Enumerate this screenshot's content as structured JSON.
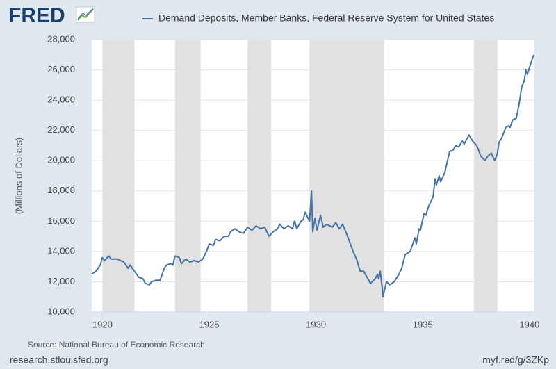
{
  "chart_data": {
    "type": "line",
    "logo": "FRED",
    "y_label": "(Millions of Dollars)",
    "source": "Source: National Bureau of Economic Research",
    "footer_left": "research.stlouisfed.org",
    "footer_right": "myf.red/g/3ZKp",
    "xlim": [
      1919.5,
      1940.2
    ],
    "xticks": [
      1920,
      1925,
      1930,
      1935,
      1940
    ],
    "ylim": [
      10000,
      28000
    ],
    "yticks": [
      {
        "value": 10000,
        "label": "10,000"
      },
      {
        "value": 12000,
        "label": "12,000"
      },
      {
        "value": 14000,
        "label": "14,000"
      },
      {
        "value": 16000,
        "label": "16,000"
      },
      {
        "value": 18000,
        "label": "18,000"
      },
      {
        "value": 20000,
        "label": "20,000"
      },
      {
        "value": 22000,
        "label": "22,000"
      },
      {
        "value": 24000,
        "label": "24,000"
      },
      {
        "value": 26000,
        "label": "26,000"
      },
      {
        "value": 28000,
        "label": "28,000"
      }
    ],
    "grid": true,
    "recessions": [
      [
        1920.0,
        1921.5
      ],
      [
        1923.4,
        1924.6
      ],
      [
        1926.8,
        1927.9
      ],
      [
        1929.7,
        1933.2
      ],
      [
        1937.4,
        1938.5
      ]
    ],
    "recession_color": "#e1e1e1",
    "x": [
      1919.5,
      1919.7,
      1919.9,
      1920.0,
      1920.1,
      1920.3,
      1920.4,
      1920.7,
      1921.0,
      1921.2,
      1921.3,
      1921.5,
      1921.7,
      1921.9,
      1922.0,
      1922.2,
      1922.3,
      1922.5,
      1922.7,
      1922.8,
      1922.9,
      1923.0,
      1923.2,
      1923.3,
      1923.4,
      1923.6,
      1923.7,
      1923.9,
      1924.1,
      1924.3,
      1924.5,
      1924.7,
      1924.9,
      1925.0,
      1925.2,
      1925.3,
      1925.5,
      1925.7,
      1925.9,
      1926.0,
      1926.2,
      1926.4,
      1926.6,
      1926.8,
      1927.0,
      1927.2,
      1927.4,
      1927.6,
      1927.8,
      1928.0,
      1928.2,
      1928.3,
      1928.5,
      1928.7,
      1928.9,
      1929.0,
      1929.1,
      1929.3,
      1929.4,
      1929.5,
      1929.7,
      1929.79,
      1929.85,
      1929.95,
      1930.05,
      1930.21,
      1930.34,
      1930.5,
      1930.76,
      1930.93,
      1931.09,
      1931.25,
      1931.48,
      1931.74,
      1931.9,
      1932.07,
      1932.23,
      1932.39,
      1932.55,
      1932.78,
      1932.88,
      1932.94,
      1933.01,
      1933.11,
      1933.14,
      1933.3,
      1933.46,
      1933.66,
      1933.89,
      1934.02,
      1934.18,
      1934.41,
      1934.63,
      1934.7,
      1934.83,
      1934.89,
      1935.06,
      1935.15,
      1935.28,
      1935.48,
      1935.58,
      1935.64,
      1935.77,
      1935.84,
      1936.03,
      1936.26,
      1936.42,
      1936.55,
      1936.68,
      1936.85,
      1936.94,
      1937.17,
      1937.33,
      1937.53,
      1937.72,
      1937.92,
      1938.05,
      1938.21,
      1938.37,
      1938.5,
      1938.57,
      1938.7,
      1938.89,
      1939.02,
      1939.09,
      1939.22,
      1939.38,
      1939.51,
      1939.64,
      1939.74,
      1939.84,
      1939.9,
      1940.03,
      1940.2
    ],
    "series": [
      {
        "name": "Demand Deposits, Member Banks, Federal Reserve System for United States",
        "color": "#4572a7",
        "values": [
          12500,
          12700,
          13100,
          13600,
          13400,
          13700,
          13500,
          13500,
          13300,
          12900,
          13100,
          12700,
          12300,
          12200,
          11900,
          11800,
          12000,
          12100,
          12100,
          12500,
          12900,
          13100,
          13200,
          13100,
          13700,
          13600,
          13200,
          13500,
          13300,
          13400,
          13300,
          13500,
          14100,
          14500,
          14400,
          14800,
          14700,
          15000,
          15000,
          15300,
          15500,
          15300,
          15200,
          15600,
          15400,
          15700,
          15500,
          15600,
          15000,
          15300,
          15500,
          15800,
          15500,
          15700,
          15500,
          16000,
          15500,
          16000,
          16100,
          16600,
          16000,
          18000,
          15300,
          16200,
          15400,
          16400,
          15600,
          15800,
          15600,
          15900,
          15500,
          15800,
          15000,
          14000,
          13500,
          12700,
          12700,
          12300,
          11900,
          12200,
          12500,
          12200,
          12700,
          11500,
          11000,
          12000,
          11800,
          12000,
          12500,
          12900,
          13800,
          14000,
          14900,
          14500,
          15500,
          15400,
          16500,
          16400,
          17000,
          17600,
          18800,
          18400,
          19000,
          18600,
          19200,
          20600,
          20700,
          21000,
          20900,
          21300,
          21100,
          21700,
          21300,
          21000,
          20300,
          20000,
          20300,
          20500,
          20000,
          20500,
          21200,
          21500,
          22200,
          22300,
          22200,
          22700,
          22800,
          23700,
          24900,
          25200,
          26000,
          25700,
          26300,
          27000
        ]
      }
    ]
  }
}
